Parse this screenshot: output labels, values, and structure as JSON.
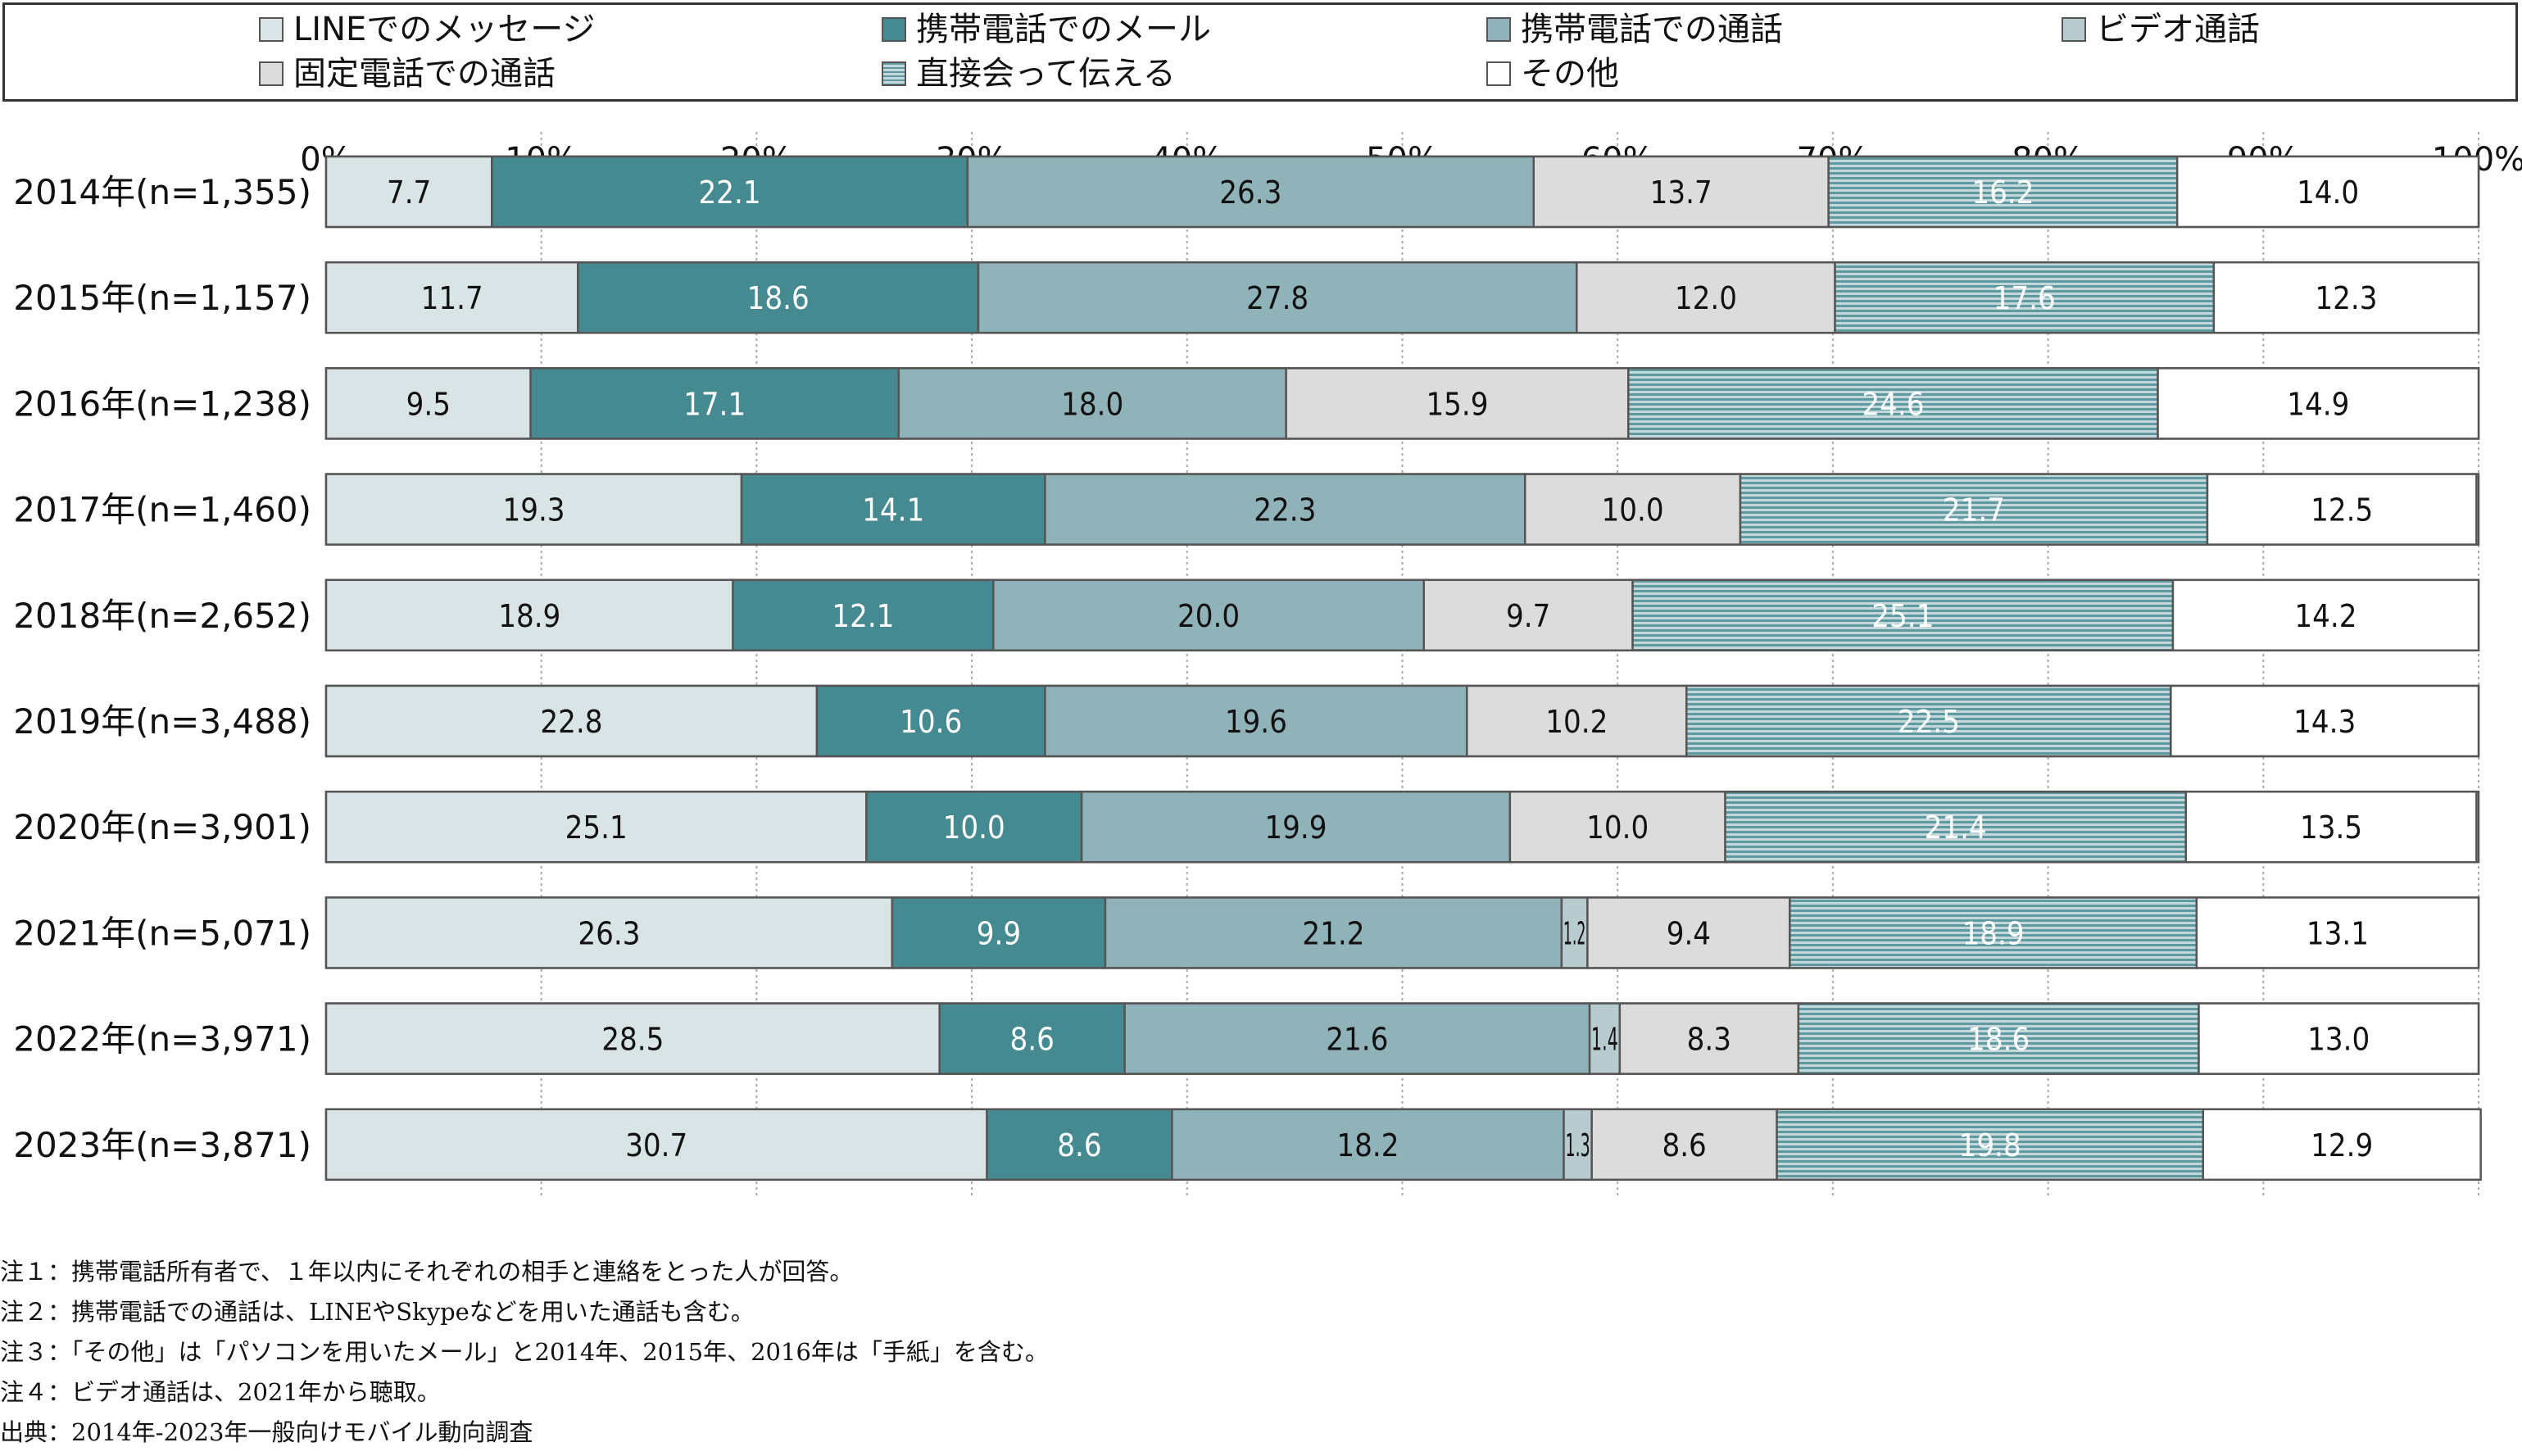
{
  "chart_data": {
    "type": "bar",
    "orientation": "horizontal",
    "stacked": "percent",
    "xlim": [
      0,
      100
    ],
    "x_ticks": [
      "0%",
      "10%",
      "20%",
      "30%",
      "40%",
      "50%",
      "60%",
      "70%",
      "80%",
      "90%",
      "100%"
    ],
    "grid": true,
    "legend_position": "top",
    "categories": [
      "2014年(n=1,355)",
      "2015年(n=1,157)",
      "2016年(n=1,238)",
      "2017年(n=1,460)",
      "2018年(n=2,652)",
      "2019年(n=3,488)",
      "2020年(n=3,901)",
      "2021年(n=5,071)",
      "2022年(n=3,971)",
      "2023年(n=3,871)"
    ],
    "series": [
      {
        "name": "LINEでのメッセージ",
        "color": "#d9e4e6",
        "text_color": "#111111",
        "pattern": "none",
        "values": [
          7.7,
          11.7,
          9.5,
          19.3,
          18.9,
          22.8,
          25.1,
          26.3,
          28.5,
          30.7
        ]
      },
      {
        "name": "携帯電話でのメール",
        "color": "#468a91",
        "text_color": "#ffffff",
        "pattern": "none",
        "values": [
          22.1,
          18.6,
          17.1,
          14.1,
          12.1,
          10.6,
          10.0,
          9.9,
          8.6,
          8.6
        ]
      },
      {
        "name": "携帯電話での通話",
        "color": "#8fb3b8",
        "text_color": "#111111",
        "pattern": "none",
        "values": [
          26.3,
          27.8,
          18.0,
          22.3,
          20.0,
          19.6,
          19.9,
          21.2,
          21.6,
          18.2
        ]
      },
      {
        "name": "ビデオ通話",
        "color": "#b8ccd0",
        "text_color": "#111111",
        "pattern": "none",
        "values": [
          null,
          null,
          null,
          null,
          null,
          null,
          null,
          1.2,
          1.4,
          1.3
        ]
      },
      {
        "name": "固定電話での通話",
        "color": "#dcdcdc",
        "text_color": "#111111",
        "pattern": "none",
        "values": [
          13.7,
          12.0,
          15.9,
          10.0,
          9.7,
          10.2,
          10.0,
          9.4,
          8.3,
          8.6
        ]
      },
      {
        "name": "直接会って伝える",
        "color": "#9ec0c4",
        "text_color": "#ffffff",
        "pattern": "horizontal-lines",
        "values": [
          16.2,
          17.6,
          24.6,
          21.7,
          25.1,
          22.5,
          21.4,
          18.9,
          18.6,
          19.8
        ]
      },
      {
        "name": "その他",
        "color": "#ffffff",
        "text_color": "#111111",
        "pattern": "none",
        "values": [
          14.0,
          12.3,
          14.9,
          12.5,
          14.2,
          14.3,
          13.5,
          13.1,
          13.0,
          12.9
        ]
      }
    ],
    "notes": [
      "注１：携帯電話所有者で、１年以内にそれぞれの相手と連絡をとった人が回答。",
      "注２：携帯電話での通話は、LINEやSkypeなどを用いた通話も含む。",
      "注３：「その他」は「パソコンを用いたメール」と2014年、2015年、2016年は「手紙」を含む。",
      "注４：ビデオ通話は、2021年から聴取。",
      "出典：2014年-2023年一般向けモバイル動向調査"
    ]
  }
}
